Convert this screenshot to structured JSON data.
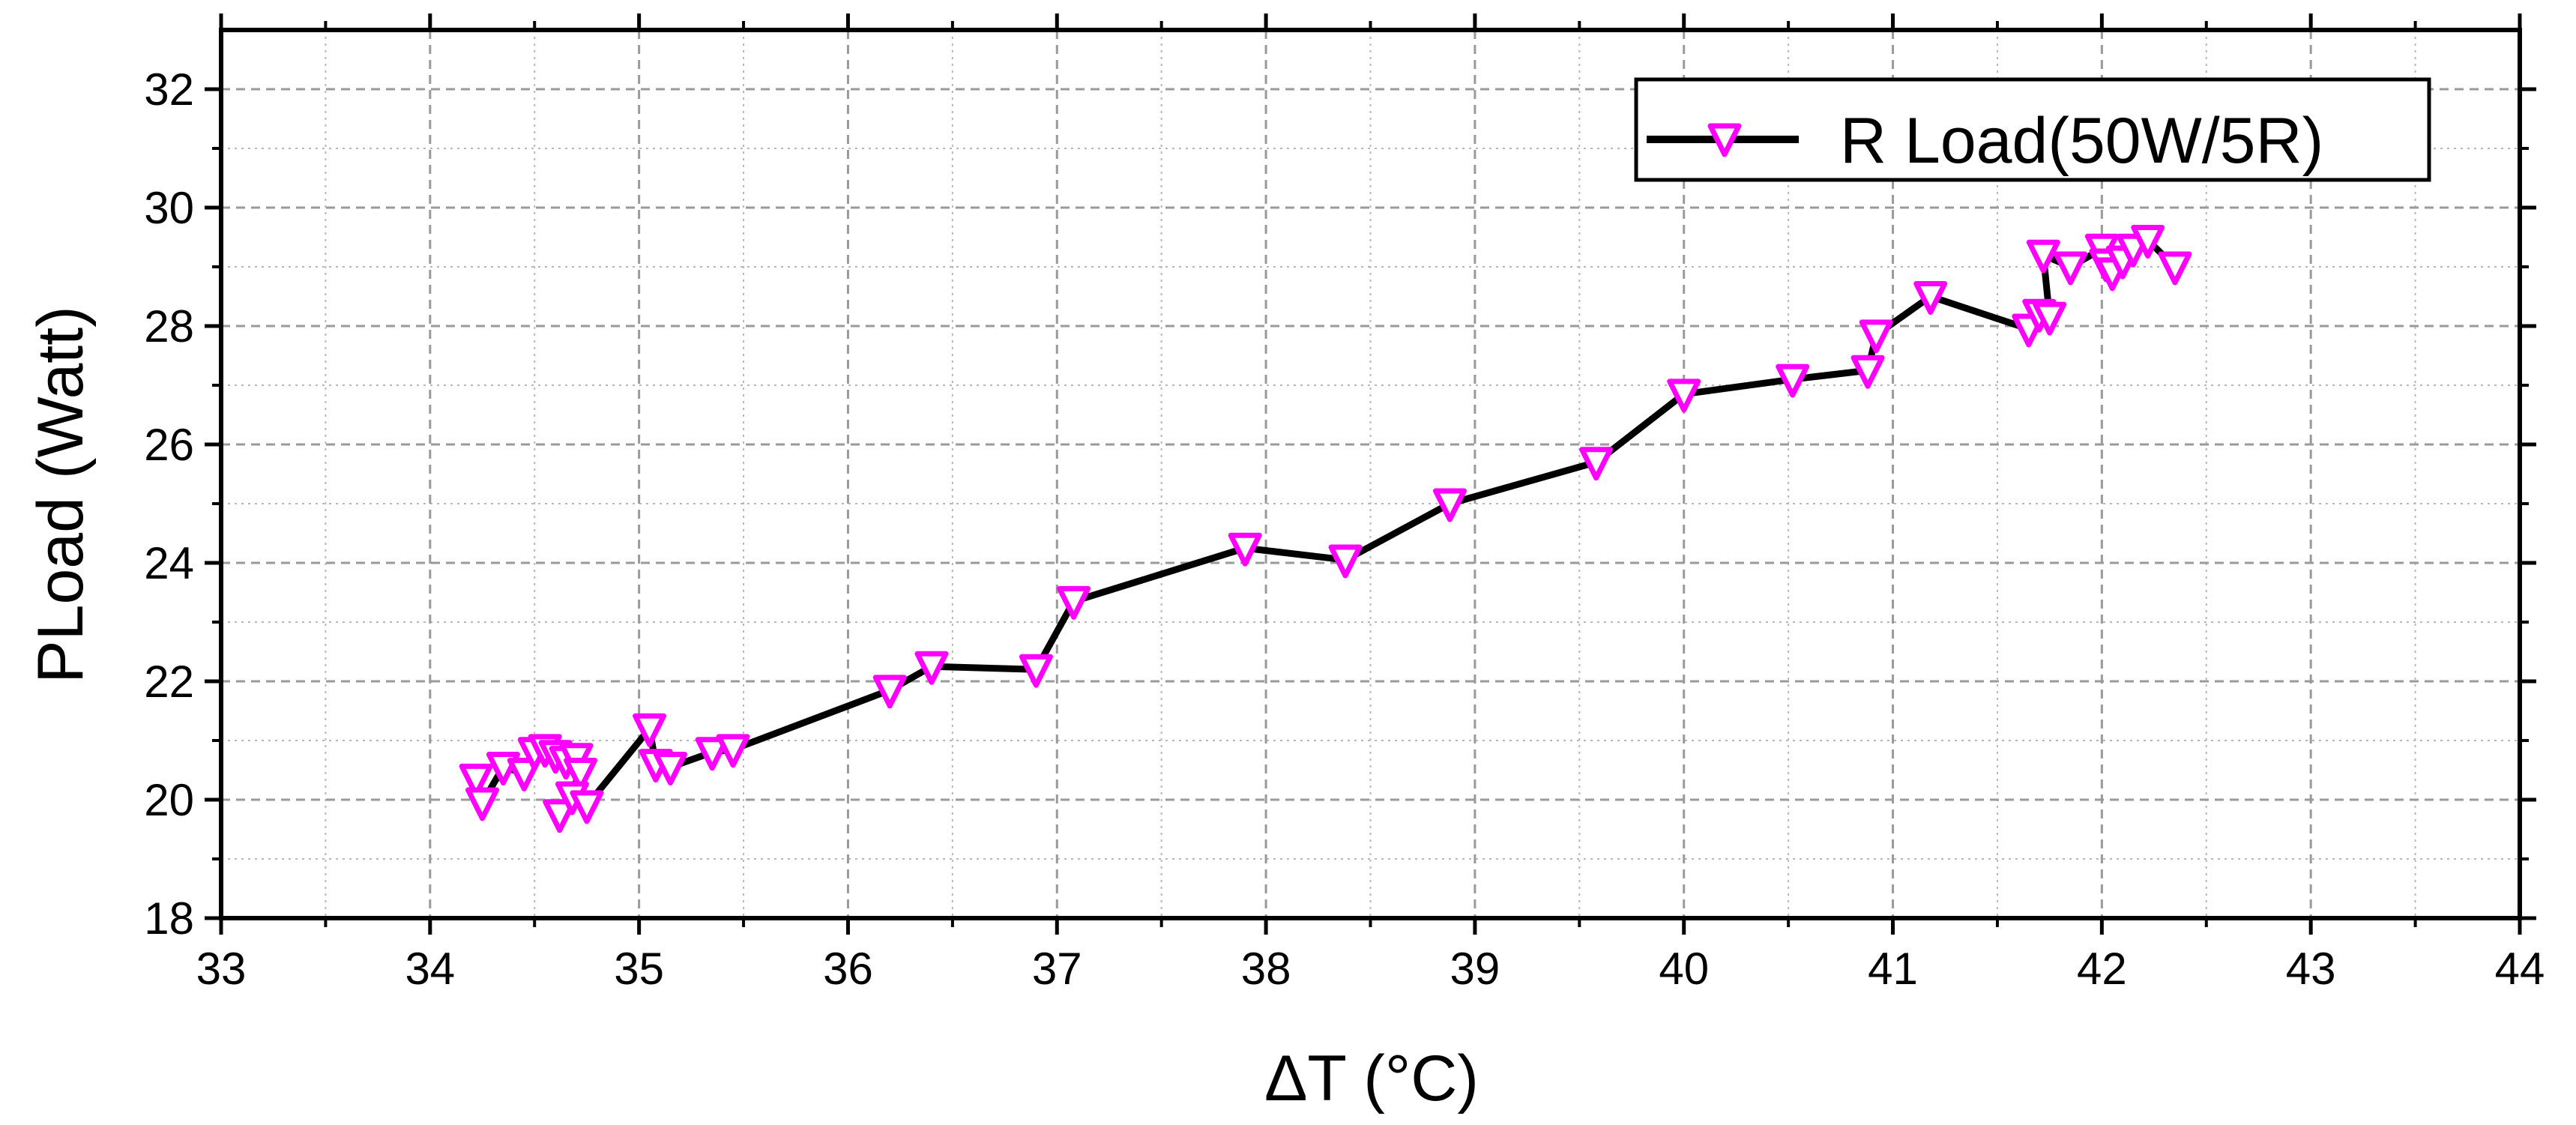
{
  "chart_data": {
    "type": "line",
    "title": "",
    "xlabel": "ΔT (°C)",
    "ylabel": "PLoad (Watt)",
    "xlim": [
      33,
      44
    ],
    "ylim": [
      18,
      33
    ],
    "x_ticks": [
      33,
      34,
      35,
      36,
      37,
      38,
      39,
      40,
      41,
      42,
      43,
      44
    ],
    "y_ticks": [
      18,
      20,
      22,
      24,
      26,
      28,
      30,
      32
    ],
    "grid": true,
    "legend_position": "top-right",
    "series": [
      {
        "name": "R Load(50W/5R)",
        "line_color": "#000000",
        "marker": "down-triangle",
        "marker_color": "#ff00ff",
        "points": [
          [
            34.22,
            20.35
          ],
          [
            34.25,
            19.95
          ],
          [
            34.35,
            20.55
          ],
          [
            34.45,
            20.45
          ],
          [
            34.5,
            20.8
          ],
          [
            34.55,
            20.85
          ],
          [
            34.6,
            20.75
          ],
          [
            34.65,
            20.65
          ],
          [
            34.7,
            20.7
          ],
          [
            34.72,
            20.45
          ],
          [
            34.62,
            19.75
          ],
          [
            34.68,
            20.05
          ],
          [
            34.75,
            19.9
          ],
          [
            35.05,
            21.2
          ],
          [
            35.08,
            20.6
          ],
          [
            35.15,
            20.55
          ],
          [
            35.35,
            20.8
          ],
          [
            35.45,
            20.85
          ],
          [
            36.2,
            21.85
          ],
          [
            36.4,
            22.25
          ],
          [
            36.9,
            22.2
          ],
          [
            37.08,
            23.35
          ],
          [
            37.9,
            24.25
          ],
          [
            38.38,
            24.05
          ],
          [
            38.88,
            25.0
          ],
          [
            39.58,
            25.7
          ],
          [
            40.0,
            26.85
          ],
          [
            40.52,
            27.1
          ],
          [
            40.88,
            27.25
          ],
          [
            40.92,
            27.85
          ],
          [
            41.18,
            28.5
          ],
          [
            41.65,
            27.95
          ],
          [
            41.7,
            28.2
          ],
          [
            41.75,
            28.15
          ],
          [
            41.72,
            29.2
          ],
          [
            41.85,
            29.0
          ],
          [
            42.0,
            29.3
          ],
          [
            42.02,
            29.05
          ],
          [
            42.05,
            28.9
          ],
          [
            42.1,
            29.1
          ],
          [
            42.15,
            29.3
          ],
          [
            42.22,
            29.45
          ],
          [
            42.35,
            29.0
          ]
        ]
      }
    ]
  },
  "colors": {
    "axis": "#000000",
    "grid": "#9a9a9a",
    "line": "#000000",
    "marker": "#ff00ff"
  }
}
